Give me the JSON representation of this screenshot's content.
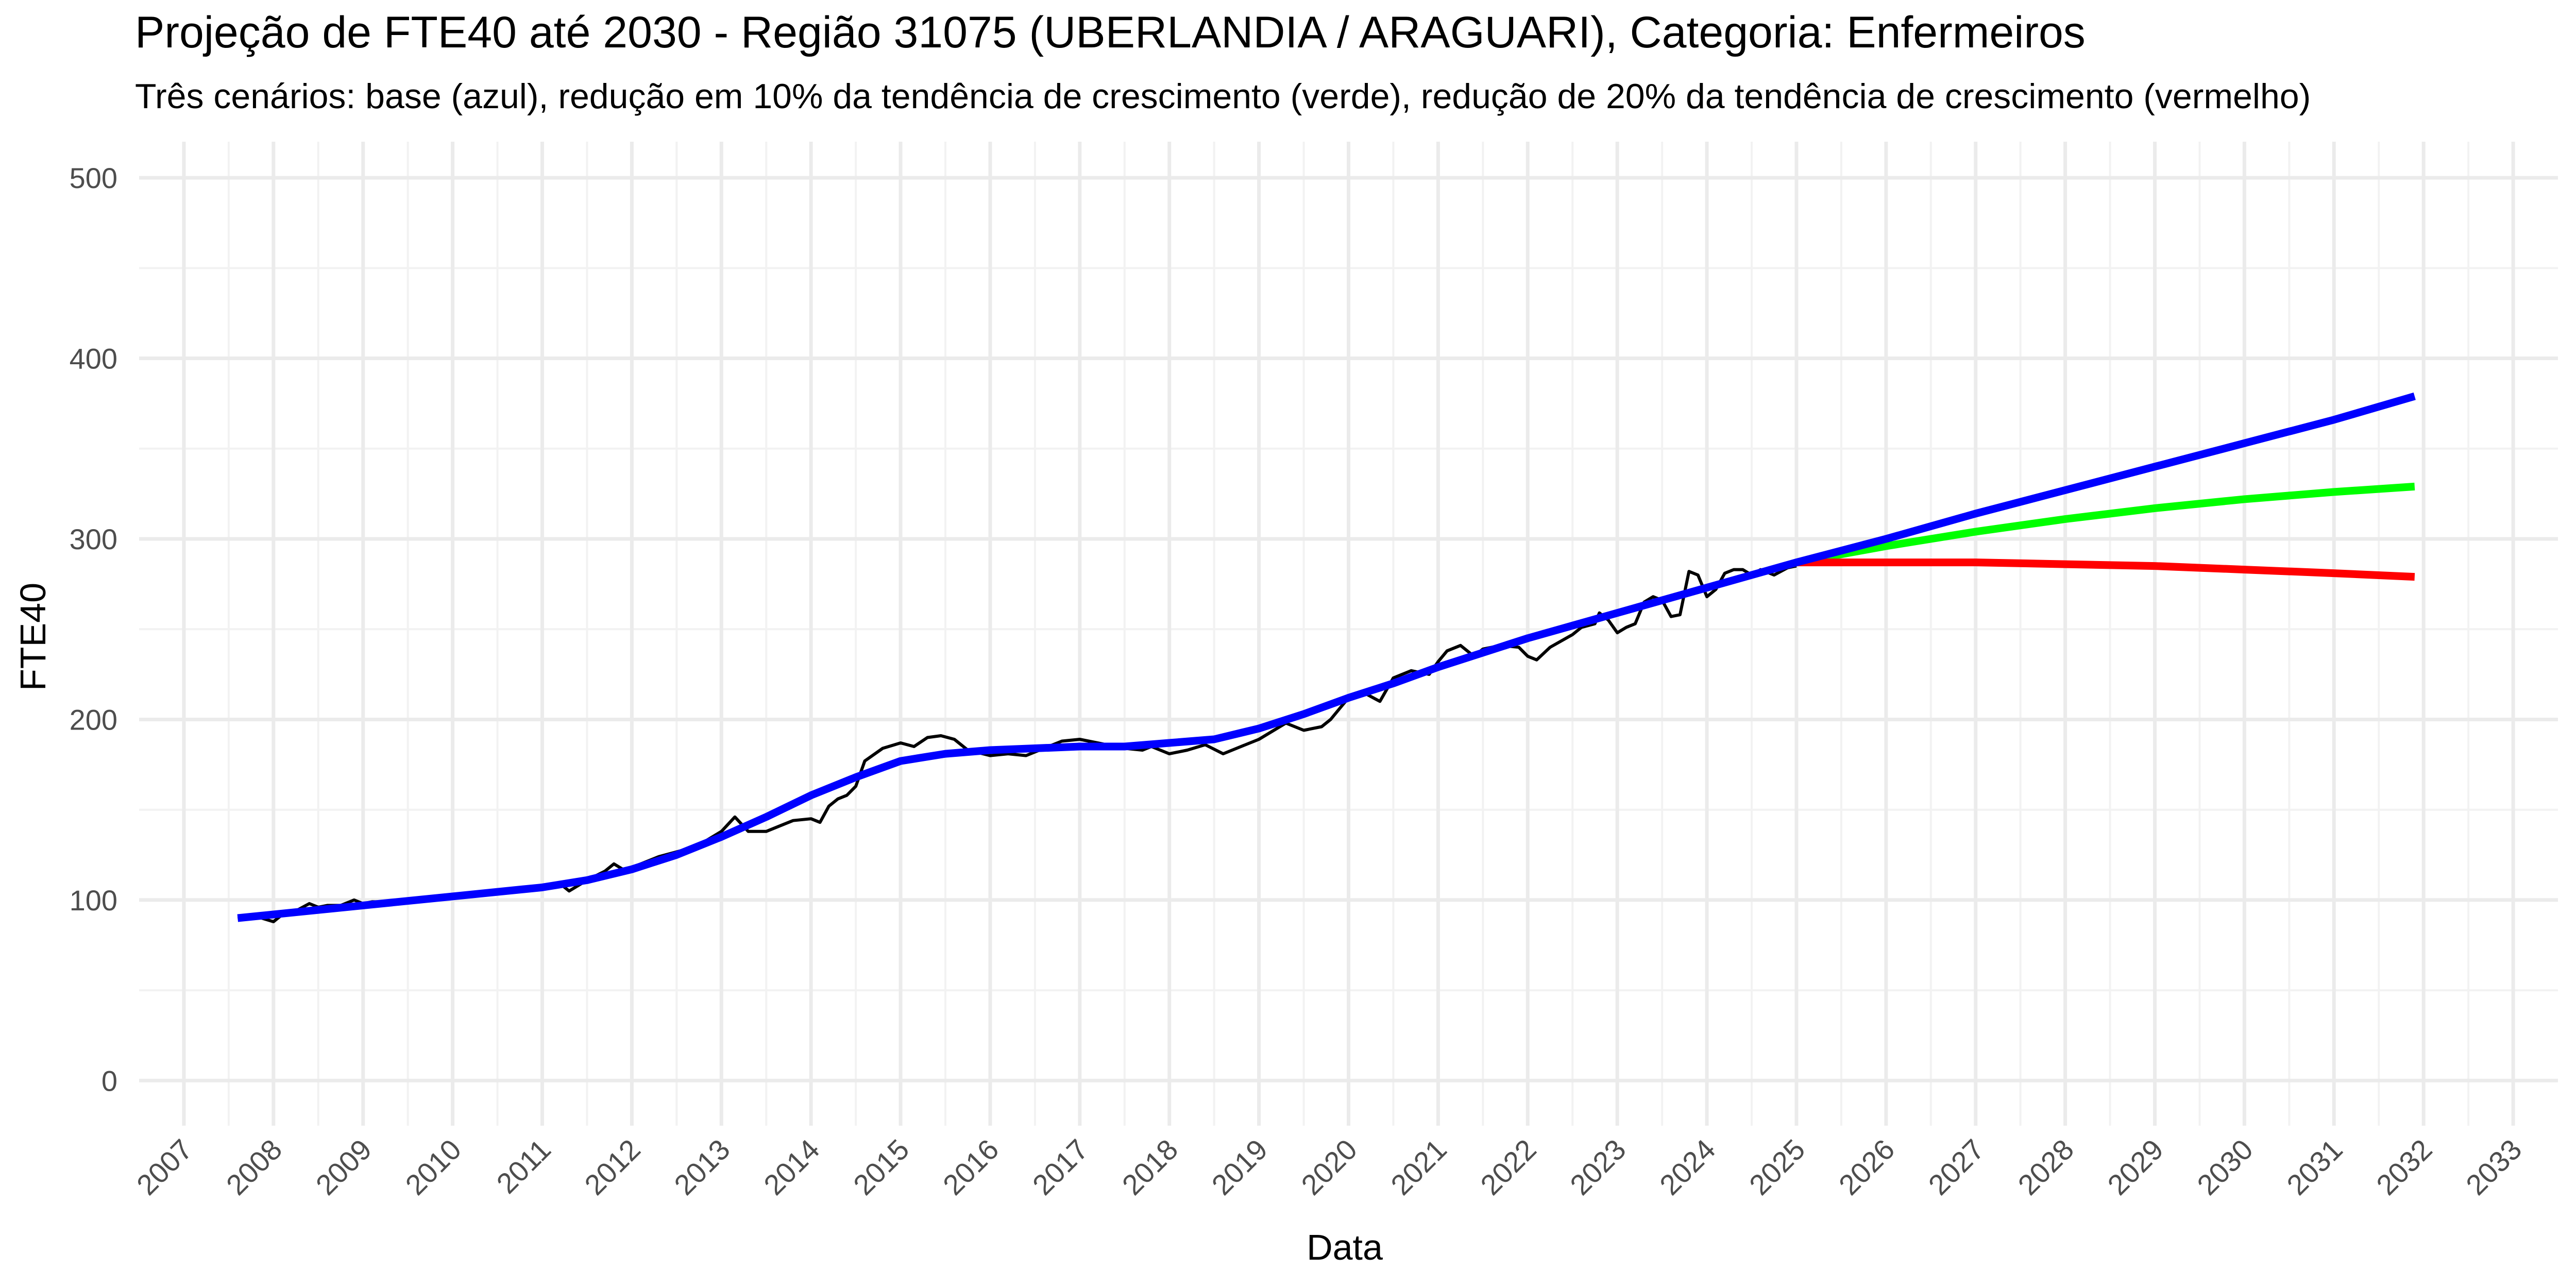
{
  "chart_data": {
    "type": "line",
    "title": "Projeção de FTE40 até 2030 - Região 31075 (UBERLANDIA / ARAGUARI), Categoria: Enfermeiros",
    "subtitle": "Três cenários: base (azul), redução em 10% da tendência de crescimento (verde), redução de 20% da tendência de crescimento (vermelho)",
    "xlabel": "Data",
    "ylabel": "FTE40",
    "x_ticks": [
      "2007",
      "2008",
      "2009",
      "2010",
      "2011",
      "2012",
      "2013",
      "2014",
      "2015",
      "2016",
      "2017",
      "2018",
      "2019",
      "2020",
      "2021",
      "2022",
      "2023",
      "2024",
      "2025",
      "2026",
      "2027",
      "2028",
      "2029",
      "2030",
      "2031",
      "2032",
      "2033"
    ],
    "y_ticks": [
      "0",
      "100",
      "200",
      "300",
      "400",
      "500"
    ],
    "xlim": [
      2006.5,
      2033.5
    ],
    "ylim": [
      -25,
      520
    ],
    "grid": true,
    "legend": "none",
    "series": [
      {
        "color": "#000000",
        "x": [
          2007.6,
          2007.8,
          2008.0,
          2008.1,
          2008.25,
          2008.4,
          2008.5,
          2008.6,
          2008.75,
          2008.9,
          2009.0,
          2009.1,
          2009.25,
          2009.5,
          2010.0,
          2010.5,
          2011.0,
          2011.2,
          2011.3,
          2011.5,
          2011.7,
          2011.8,
          2011.9,
          2012.0,
          2012.3,
          2012.6,
          2012.8,
          2013.0,
          2013.15,
          2013.3,
          2013.5,
          2013.7,
          2013.8,
          2014.0,
          2014.1,
          2014.2,
          2014.3,
          2014.4,
          2014.5,
          2014.6,
          2014.8,
          2015.0,
          2015.15,
          2015.3,
          2015.45,
          2015.6,
          2015.75,
          2016.0,
          2016.2,
          2016.4,
          2016.6,
          2016.8,
          2017.0,
          2017.2,
          2017.5,
          2017.7,
          2017.8,
          2018.0,
          2018.2,
          2018.4,
          2018.6,
          2018.8,
          2019.0,
          2019.2,
          2019.3,
          2019.5,
          2019.7,
          2019.8,
          2019.9,
          2020.0,
          2020.2,
          2020.35,
          2020.5,
          2020.7,
          2020.9,
          2021.0,
          2021.1,
          2021.25,
          2021.4,
          2021.5,
          2021.7,
          2021.9,
          2022.0,
          2022.1,
          2022.25,
          2022.5,
          2022.6,
          2022.75,
          2022.8,
          2022.9,
          2023.0,
          2023.1,
          2023.2,
          2023.3,
          2023.4,
          2023.5,
          2023.6,
          2023.7,
          2023.8,
          2023.9,
          2024.0,
          2024.1,
          2024.2,
          2024.3,
          2024.4,
          2024.5,
          2024.6,
          2024.75,
          2024.9,
          2025.0
        ],
        "values": [
          90,
          91,
          88,
          92,
          94,
          98,
          96,
          97,
          97,
          100,
          98,
          99,
          99,
          100,
          102,
          104,
          107,
          109,
          105,
          111,
          116,
          120,
          117,
          118,
          124,
          128,
          132,
          138,
          146,
          138,
          138,
          142,
          144,
          145,
          143,
          152,
          156,
          158,
          163,
          177,
          184,
          187,
          185,
          190,
          191,
          189,
          183,
          180,
          181,
          180,
          184,
          188,
          189,
          187,
          184,
          183,
          185,
          181,
          183,
          186,
          181,
          185,
          189,
          195,
          198,
          194,
          196,
          200,
          206,
          212,
          214,
          210,
          223,
          227,
          225,
          232,
          238,
          241,
          235,
          239,
          241,
          240,
          235,
          233,
          240,
          247,
          251,
          253,
          259,
          255,
          248,
          251,
          253,
          265,
          268,
          266,
          257,
          258,
          282,
          280,
          268,
          272,
          281,
          283,
          283,
          280,
          283,
          280,
          284,
          285
        ]
      },
      {
        "color": "#0000ff",
        "x": [
          2007.6,
          2009.0,
          2010.0,
          2011.0,
          2011.5,
          2012.0,
          2012.5,
          2013.0,
          2013.5,
          2014.0,
          2014.5,
          2015.0,
          2015.5,
          2016.0,
          2016.5,
          2017.0,
          2017.5,
          2018.0,
          2018.5,
          2019.0,
          2019.5,
          2020.0,
          2020.5,
          2021.0,
          2022.0,
          2023.0,
          2024.0,
          2025.0,
          2026.0,
          2027.0,
          2028.0,
          2029.0,
          2030.0,
          2031.0,
          2031.9
        ],
        "values": [
          90,
          97,
          102,
          107,
          111,
          117,
          125,
          135,
          146,
          158,
          168,
          177,
          181,
          183,
          184,
          185,
          185,
          187,
          189,
          195,
          203,
          212,
          220,
          229,
          245,
          259,
          273,
          287,
          300,
          314,
          327,
          340,
          353,
          366,
          379
        ]
      },
      {
        "color": "#00ff00",
        "x": [
          2025.0,
          2026.0,
          2027.0,
          2028.0,
          2029.0,
          2030.0,
          2031.0,
          2031.9
        ],
        "values": [
          287,
          296,
          304,
          311,
          317,
          322,
          326,
          329
        ]
      },
      {
        "color": "#ff0000",
        "x": [
          2025.0,
          2026.0,
          2027.0,
          2028.0,
          2029.0,
          2030.0,
          2031.0,
          2031.9
        ],
        "values": [
          287,
          287,
          287,
          286,
          285,
          283,
          281,
          279
        ]
      }
    ]
  }
}
